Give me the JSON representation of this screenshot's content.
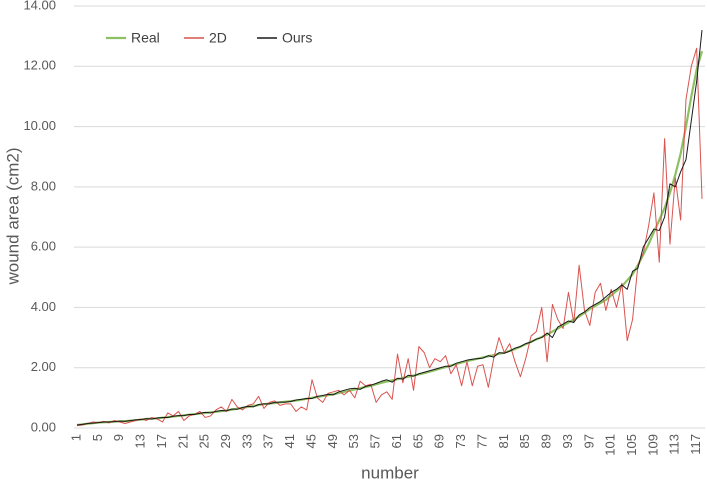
{
  "chart_data": {
    "type": "line",
    "x_label": "number",
    "y_label": "wound area (cm2)",
    "x": [
      1,
      2,
      3,
      4,
      5,
      6,
      7,
      8,
      9,
      10,
      11,
      12,
      13,
      14,
      15,
      16,
      17,
      18,
      19,
      20,
      21,
      22,
      23,
      24,
      25,
      26,
      27,
      28,
      29,
      30,
      31,
      32,
      33,
      34,
      35,
      36,
      37,
      38,
      39,
      40,
      41,
      42,
      43,
      44,
      45,
      46,
      47,
      48,
      49,
      50,
      51,
      52,
      53,
      54,
      55,
      56,
      57,
      58,
      59,
      60,
      61,
      62,
      63,
      64,
      65,
      66,
      67,
      68,
      69,
      70,
      71,
      72,
      73,
      74,
      75,
      76,
      77,
      78,
      79,
      80,
      81,
      82,
      83,
      84,
      85,
      86,
      87,
      88,
      89,
      90,
      91,
      92,
      93,
      94,
      95,
      96,
      97,
      98,
      99,
      100,
      101,
      102,
      103,
      104,
      105,
      106,
      107,
      108,
      109,
      110,
      111,
      112,
      113,
      114,
      115,
      116,
      117,
      118
    ],
    "xlim": [
      1,
      118
    ],
    "xticks": [
      1,
      5,
      9,
      13,
      17,
      21,
      25,
      29,
      33,
      37,
      41,
      45,
      49,
      53,
      57,
      61,
      65,
      69,
      73,
      77,
      81,
      85,
      89,
      93,
      97,
      101,
      105,
      109,
      113,
      117
    ],
    "ylim": [
      0,
      14
    ],
    "yticks": [
      {
        "value": 0,
        "label": "0.00"
      },
      {
        "value": 2,
        "label": "2.00"
      },
      {
        "value": 4,
        "label": "4.00"
      },
      {
        "value": 6,
        "label": "6.00"
      },
      {
        "value": 8,
        "label": "8.00"
      },
      {
        "value": 10,
        "label": "10.00"
      },
      {
        "value": 12,
        "label": "12.00"
      },
      {
        "value": 14,
        "label": "14.00"
      }
    ],
    "grid": true,
    "legend": "top-left",
    "series": [
      {
        "name": "Real",
        "color": "#8dc063",
        "values": [
          0.1,
          0.12,
          0.14,
          0.16,
          0.18,
          0.19,
          0.2,
          0.21,
          0.22,
          0.23,
          0.24,
          0.26,
          0.28,
          0.3,
          0.31,
          0.32,
          0.34,
          0.36,
          0.38,
          0.4,
          0.42,
          0.44,
          0.46,
          0.48,
          0.5,
          0.52,
          0.54,
          0.56,
          0.58,
          0.61,
          0.64,
          0.67,
          0.7,
          0.73,
          0.76,
          0.79,
          0.81,
          0.83,
          0.85,
          0.87,
          0.89,
          0.91,
          0.94,
          0.97,
          1.0,
          1.03,
          1.06,
          1.09,
          1.12,
          1.16,
          1.2,
          1.24,
          1.28,
          1.32,
          1.36,
          1.4,
          1.45,
          1.5,
          1.54,
          1.58,
          1.62,
          1.66,
          1.7,
          1.74,
          1.78,
          1.82,
          1.87,
          1.92,
          1.97,
          2.02,
          2.07,
          2.12,
          2.17,
          2.22,
          2.26,
          2.3,
          2.34,
          2.38,
          2.42,
          2.46,
          2.5,
          2.56,
          2.62,
          2.7,
          2.78,
          2.86,
          2.94,
          3.02,
          3.1,
          3.2,
          3.3,
          3.4,
          3.5,
          3.6,
          3.7,
          3.82,
          3.95,
          4.05,
          4.15,
          4.25,
          4.4,
          4.55,
          4.7,
          4.9,
          5.1,
          5.4,
          5.75,
          6.1,
          6.5,
          6.9,
          7.3,
          7.8,
          8.4,
          9.1,
          10.0,
          11.0,
          11.9,
          12.5
        ]
      },
      {
        "name": "2D",
        "color": "#d9534f",
        "values": [
          0.08,
          0.1,
          0.15,
          0.2,
          0.18,
          0.22,
          0.17,
          0.25,
          0.2,
          0.15,
          0.2,
          0.25,
          0.3,
          0.25,
          0.35,
          0.3,
          0.2,
          0.5,
          0.4,
          0.55,
          0.25,
          0.4,
          0.45,
          0.55,
          0.35,
          0.4,
          0.6,
          0.7,
          0.55,
          0.95,
          0.7,
          0.6,
          0.75,
          0.8,
          1.05,
          0.65,
          0.85,
          0.9,
          0.75,
          0.8,
          0.8,
          0.55,
          0.7,
          0.6,
          1.6,
          1.0,
          0.85,
          1.15,
          1.2,
          1.25,
          1.1,
          1.25,
          1.0,
          1.55,
          1.4,
          1.45,
          0.85,
          1.1,
          1.2,
          0.95,
          2.45,
          1.5,
          2.3,
          1.25,
          2.7,
          2.5,
          2.0,
          2.3,
          2.2,
          2.4,
          1.8,
          2.1,
          1.4,
          2.2,
          1.4,
          2.05,
          2.1,
          1.35,
          2.3,
          3.0,
          2.5,
          2.8,
          2.2,
          1.7,
          2.3,
          3.05,
          3.2,
          4.0,
          2.2,
          4.1,
          3.6,
          3.3,
          4.5,
          3.5,
          5.4,
          3.9,
          3.4,
          4.5,
          4.8,
          3.9,
          4.6,
          4.0,
          4.8,
          2.9,
          3.6,
          5.4,
          5.8,
          6.7,
          7.8,
          5.5,
          9.6,
          6.1,
          8.3,
          6.9,
          10.9,
          12.0,
          12.6,
          7.6
        ]
      },
      {
        "name": "Ours",
        "color": "#1a1a1a",
        "values": [
          0.1,
          0.12,
          0.15,
          0.16,
          0.18,
          0.2,
          0.2,
          0.21,
          0.23,
          0.22,
          0.25,
          0.27,
          0.28,
          0.31,
          0.3,
          0.33,
          0.35,
          0.35,
          0.39,
          0.41,
          0.41,
          0.45,
          0.45,
          0.49,
          0.52,
          0.5,
          0.55,
          0.58,
          0.57,
          0.63,
          0.62,
          0.68,
          0.72,
          0.7,
          0.78,
          0.8,
          0.8,
          0.85,
          0.86,
          0.86,
          0.88,
          0.93,
          0.95,
          0.98,
          0.98,
          1.05,
          1.08,
          1.12,
          1.1,
          1.2,
          1.25,
          1.3,
          1.32,
          1.28,
          1.38,
          1.42,
          1.48,
          1.55,
          1.6,
          1.52,
          1.65,
          1.62,
          1.75,
          1.72,
          1.8,
          1.85,
          1.9,
          1.95,
          2.0,
          2.05,
          2.05,
          2.15,
          2.2,
          2.25,
          2.28,
          2.3,
          2.32,
          2.4,
          2.35,
          2.5,
          2.48,
          2.55,
          2.65,
          2.7,
          2.8,
          2.85,
          2.95,
          3.0,
          3.15,
          3.0,
          3.35,
          3.45,
          3.55,
          3.5,
          3.75,
          3.85,
          4.0,
          4.1,
          4.2,
          4.35,
          4.5,
          4.6,
          4.75,
          4.6,
          5.2,
          5.3,
          6.0,
          6.3,
          6.6,
          6.55,
          7.0,
          8.1,
          8.0,
          8.5,
          8.9,
          10.2,
          11.5,
          13.2
        ]
      }
    ]
  }
}
